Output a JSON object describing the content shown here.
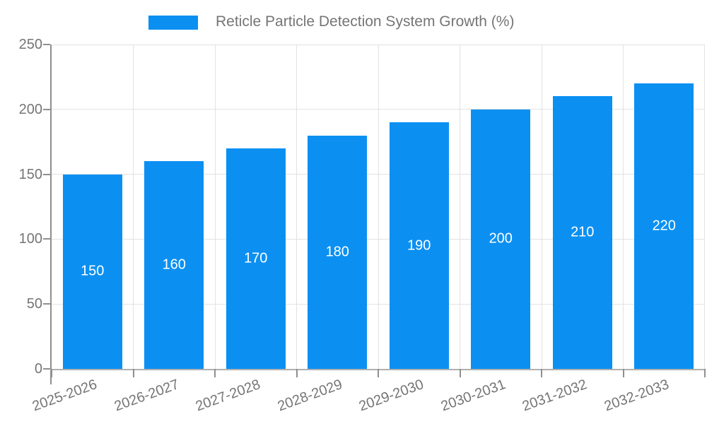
{
  "legend": {
    "label": "Reticle Particle Detection System Growth (%)"
  },
  "chart_data": {
    "type": "bar",
    "title": "Reticle Particle Detection System Growth (%)",
    "categories": [
      "2025-2026",
      "2026-2027",
      "2027-2028",
      "2028-2029",
      "2029-2030",
      "2030-2031",
      "2031-2032",
      "2032-2033"
    ],
    "values": [
      150,
      160,
      170,
      180,
      190,
      200,
      210,
      220
    ],
    "bar_value_labels": [
      "150",
      "160",
      "170",
      "180",
      "190",
      "200",
      "210",
      "220"
    ],
    "xlabel": "",
    "ylabel": "",
    "ylim": [
      0,
      250
    ],
    "yticks": [
      0,
      50,
      100,
      150,
      200,
      250
    ],
    "grid": true,
    "legend_position": "top-center"
  },
  "colors": {
    "bar": "#0b90f2",
    "bar_label": "#ffffff",
    "axis_text": "#757575",
    "gridline": "#e2e2e2",
    "axis_line": "#8f8f8f",
    "background": "#ffffff"
  }
}
